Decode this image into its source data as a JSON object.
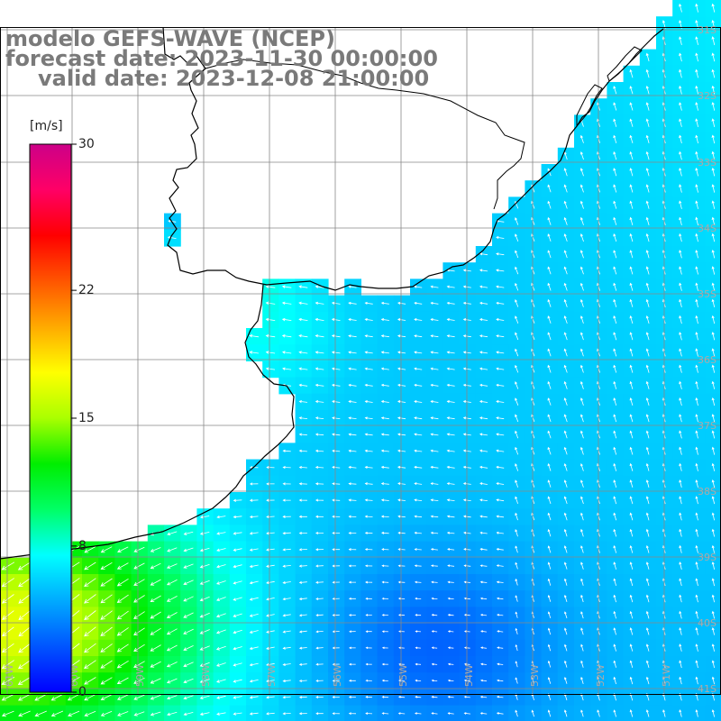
{
  "title": {
    "model": "modelo GEFS-WAVE (NCEP)",
    "forecast": "forecast date: 2023-11-30 00:00:00",
    "valid": "valid date: 2023-12-08 21:00:00"
  },
  "colorbar": {
    "unit": "[m/s]",
    "min": 0,
    "max": 30,
    "ticks": [
      {
        "label": "30",
        "value": 30
      },
      {
        "label": "22",
        "value": 22
      },
      {
        "label": "15",
        "value": 15
      },
      {
        "label": "8",
        "value": 8
      },
      {
        "label": "0",
        "value": 0
      }
    ],
    "colors": [
      "#0000ff",
      "#0055ff",
      "#00aaff",
      "#00ffff",
      "#00ff66",
      "#00ee00",
      "#aaff00",
      "#ffff00",
      "#ffaa00",
      "#ff5500",
      "#ff0000",
      "#ff0066",
      "#cc0088"
    ]
  },
  "grid": {
    "longitude_labels": [
      "61W",
      "60W",
      "59W",
      "58W",
      "57W",
      "56W",
      "55W",
      "54W",
      "53W",
      "52W",
      "51W"
    ],
    "latitude_labels": [
      "31S",
      "32S",
      "33S",
      "34S",
      "35S",
      "36S",
      "37S",
      "38S",
      "39S",
      "40S",
      "41S"
    ]
  },
  "field": {
    "variable": "wind speed",
    "low_speed_region": "southeast center (about 3-5 m/s)",
    "high_speed_region": "southwest corner (about 15-17 m/s)",
    "vector_directions": "toward the west and northwest offshore; toward the southwest in the southwest corner"
  },
  "land_color": "#ffffff",
  "coastline_color": "#000000",
  "gridline_color": "#888888"
}
